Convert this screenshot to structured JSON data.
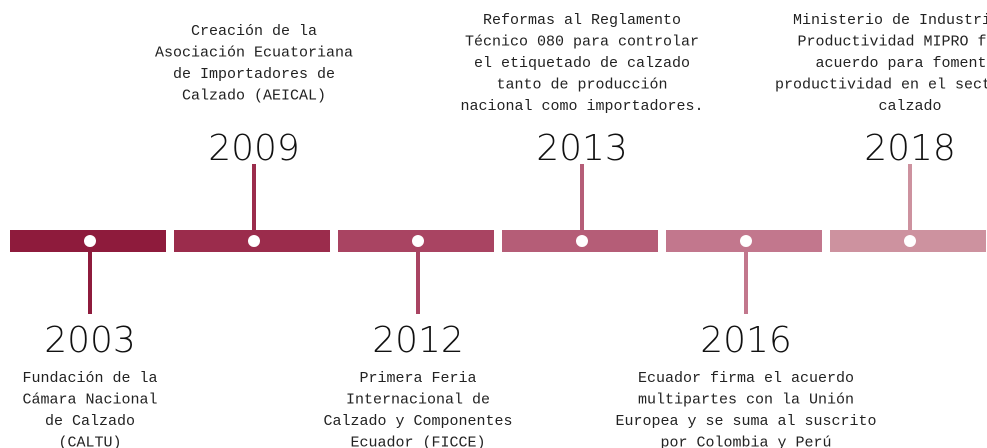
{
  "events": [
    {
      "year": "2003",
      "lines": [
        "Fundación de la",
        "Cámara Nacional",
        "de Calzado",
        "(CALTU)"
      ]
    },
    {
      "year": "2009",
      "lines": [
        "Creación de la",
        "Asociación Ecuatoriana",
        "de Importadores de",
        "Calzado (AEICAL)"
      ]
    },
    {
      "year": "2012",
      "lines": [
        "Primera Feria",
        "Internacional de",
        "Calzado y Componentes",
        "Ecuador (FICCE)"
      ]
    },
    {
      "year": "2013",
      "lines": [
        "Reformas al Reglamento",
        "Técnico 080 para controlar",
        "el etiquetado de calzado",
        "tanto de producción",
        "nacional como importadores."
      ]
    },
    {
      "year": "2016",
      "lines": [
        "Ecuador firma el acuerdo",
        "multipartes con la Unión",
        "Europea y se suma al suscrito",
        "por Colombia y Perú"
      ]
    },
    {
      "year": "2018",
      "lines": [
        "Ministerio de Industrias y",
        "Productividad MIPRO firmó",
        "acuerdo para fomentar",
        "productividad en el sector del",
        "calzado"
      ]
    }
  ]
}
